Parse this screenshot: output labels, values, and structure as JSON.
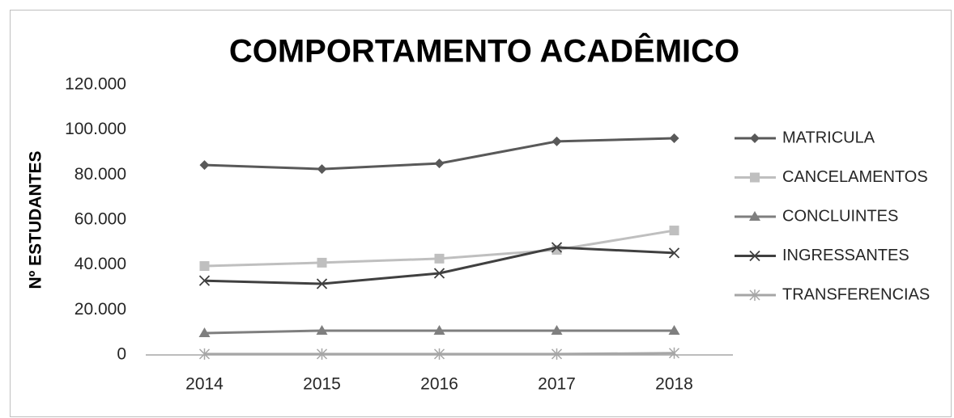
{
  "chart_data": {
    "type": "line",
    "title": "COMPORTAMENTO ACADÊMICO",
    "y_label": "Nº ESTUDANTES",
    "categories": [
      "2014",
      "2015",
      "2016",
      "2017",
      "2018"
    ],
    "series": [
      {
        "name": "MATRICULA",
        "color": "#595959",
        "marker": "diamond",
        "values": [
          84400,
          82600,
          85100,
          94900,
          96300
        ]
      },
      {
        "name": "CANCELAMENTOS",
        "color": "#bfbfbf",
        "marker": "square",
        "values": [
          39500,
          41000,
          42800,
          46700,
          55300
        ]
      },
      {
        "name": "CONCLUINTES",
        "color": "#7f7f7f",
        "marker": "triangle",
        "values": [
          9700,
          10800,
          10800,
          10800,
          10800
        ]
      },
      {
        "name": "INGRESSANTES",
        "color": "#404040",
        "marker": "x",
        "values": [
          33000,
          31600,
          36300,
          47800,
          45300
        ]
      },
      {
        "name": "TRANSFERENCIAS",
        "color": "#a6a6a6",
        "marker": "asterisk",
        "values": [
          400,
          400,
          400,
          400,
          800
        ]
      }
    ],
    "ylim": [
      0,
      120000
    ],
    "yticks": [
      0,
      {
        "value": 20000,
        "label": "20.000"
      },
      {
        "value": 40000,
        "label": "40.000"
      },
      {
        "value": 60000,
        "label": "60.000"
      },
      {
        "value": 80000,
        "label": "80.000"
      },
      {
        "value": 100000,
        "label": "100.000"
      },
      {
        "value": 120000,
        "label": "120.000"
      }
    ],
    "grid": false,
    "legend": "right"
  }
}
